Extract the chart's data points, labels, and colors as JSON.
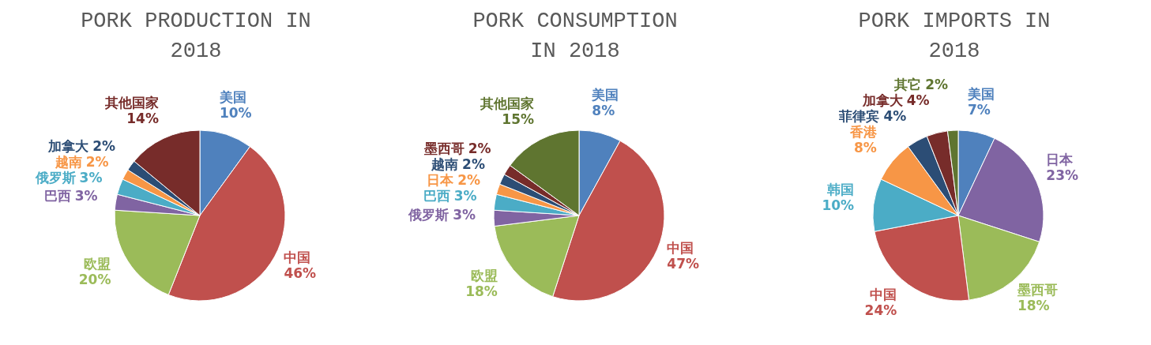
{
  "chart_data": [
    {
      "type": "pie",
      "title": "PORK PRODUCTION IN 2018",
      "categories": [
        "美国",
        "中国",
        "欧盟",
        "巴西",
        "俄罗斯",
        "越南",
        "加拿大",
        "其他国家"
      ],
      "values": [
        10,
        46,
        20,
        3,
        3,
        2,
        2,
        14
      ],
      "value_labels": [
        "10%",
        "46%",
        "20%",
        "3%",
        "3%",
        "2%",
        "2%",
        "14%"
      ],
      "colors": [
        "#4f81bd",
        "#c0504d",
        "#9bbb59",
        "#8064a2",
        "#4bacc6",
        "#f79646",
        "#2c4d75",
        "#772c2a"
      ]
    },
    {
      "type": "pie",
      "title": "PORK CONSUMPTION IN 2018",
      "categories": [
        "美国",
        "中国",
        "欧盟",
        "俄罗斯",
        "巴西",
        "日本",
        "越南",
        "墨西哥",
        "其他国家"
      ],
      "values": [
        8,
        47,
        18,
        3,
        3,
        2,
        2,
        2,
        15
      ],
      "value_labels": [
        "8%",
        "47%",
        "18%",
        "3%",
        "3%",
        "2%",
        "2%",
        "2%",
        "15%"
      ],
      "colors": [
        "#4f81bd",
        "#c0504d",
        "#9bbb59",
        "#8064a2",
        "#4bacc6",
        "#f79646",
        "#2c4d75",
        "#772c2a",
        "#5f7530"
      ]
    },
    {
      "type": "pie",
      "title": "PORK IMPORTS IN 2018",
      "categories": [
        "美国",
        "日本",
        "墨西哥",
        "中国",
        "韩国",
        "香港",
        "菲律宾",
        "加拿大",
        "其它"
      ],
      "values": [
        7,
        23,
        18,
        24,
        10,
        8,
        4,
        4,
        2
      ],
      "value_labels": [
        "7%",
        "23%",
        "18%",
        "24%",
        "10%",
        "8%",
        "4%",
        "4%",
        "2%"
      ],
      "colors": [
        "#4f81bd",
        "#8064a2",
        "#9bbb59",
        "#c0504d",
        "#4bacc6",
        "#f79646",
        "#2c4d75",
        "#772c2a",
        "#5f7530"
      ]
    }
  ]
}
